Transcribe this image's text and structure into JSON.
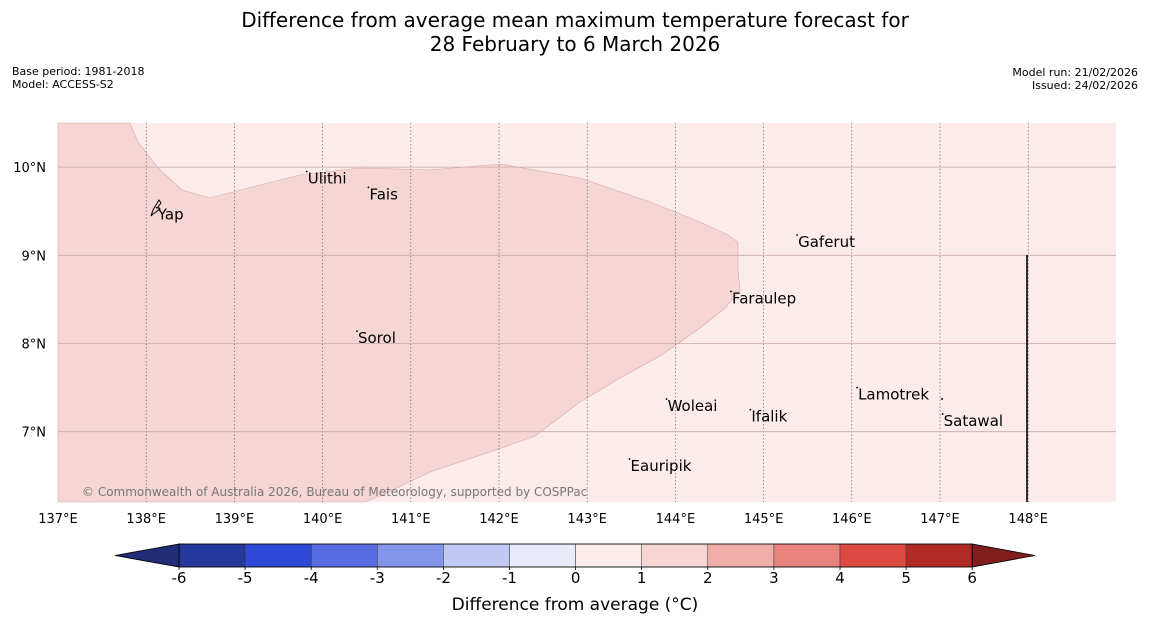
{
  "title": {
    "line1": "Difference from average mean maximum temperature forecast for",
    "line2": "28 February to 6 March 2026"
  },
  "meta": {
    "base_period": "Base period: 1981-2018",
    "model": "Model: ACCESS-S2",
    "model_run": "Model run: 21/02/2026",
    "issued": "Issued: 24/02/2026"
  },
  "map": {
    "lon_range": [
      137,
      149
    ],
    "lat_range": [
      6.2,
      10.5
    ],
    "lon_ticks": [
      137,
      138,
      139,
      140,
      141,
      142,
      143,
      144,
      145,
      146,
      147,
      148
    ],
    "lon_labels": [
      "137°E",
      "138°E",
      "139°E",
      "140°E",
      "141°E",
      "142°E",
      "143°E",
      "144°E",
      "145°E",
      "146°E",
      "147°E",
      "148°E"
    ],
    "lat_ticks": [
      10,
      9,
      8,
      7
    ],
    "lat_labels": [
      "10°N",
      "9°N",
      "8°N",
      "7°N"
    ],
    "region_colors": {
      "band_0_1": "#fbebea",
      "band_1_2": "#f5d6d4"
    },
    "places": [
      {
        "name": "Ulithi",
        "lon": 139.82,
        "lat": 9.95
      },
      {
        "name": "Fais",
        "lon": 140.52,
        "lat": 9.77
      },
      {
        "name": "Yap",
        "lon": 138.12,
        "lat": 9.54
      },
      {
        "name": "Gaferut",
        "lon": 145.38,
        "lat": 9.23
      },
      {
        "name": "Faraulep",
        "lon": 144.63,
        "lat": 8.59
      },
      {
        "name": "Sorol",
        "lon": 140.39,
        "lat": 8.14
      },
      {
        "name": "Lamotrek",
        "lon": 146.06,
        "lat": 7.5
      },
      {
        "name": "Woleai",
        "lon": 143.9,
        "lat": 7.37
      },
      {
        "name": "Ifalik",
        "lon": 144.85,
        "lat": 7.25
      },
      {
        "name": "Satawal",
        "lon": 147.03,
        "lat": 7.2
      },
      {
        "name": "Eauripik",
        "lon": 143.48,
        "lat": 6.69
      }
    ],
    "copyright": "© Commonwealth of Australia 2026, Bureau of Meteorology, supported by COSPPac"
  },
  "colorbar": {
    "colors": [
      "#27389d",
      "#2e49d7",
      "#566ce0",
      "#8595ea",
      "#c1c9f4",
      "#e9ebfb",
      "#fbebea",
      "#f5d6d4",
      "#efaeaa",
      "#e8837d",
      "#dd4a41",
      "#b12a26"
    ],
    "under_color": "#212d78",
    "over_color": "#7f1e1b",
    "ticks": [
      "-6",
      "-5",
      "-4",
      "-3",
      "-2",
      "-1",
      "0",
      "1",
      "2",
      "3",
      "4",
      "5",
      "6"
    ],
    "label": "Difference from average (°C)"
  }
}
